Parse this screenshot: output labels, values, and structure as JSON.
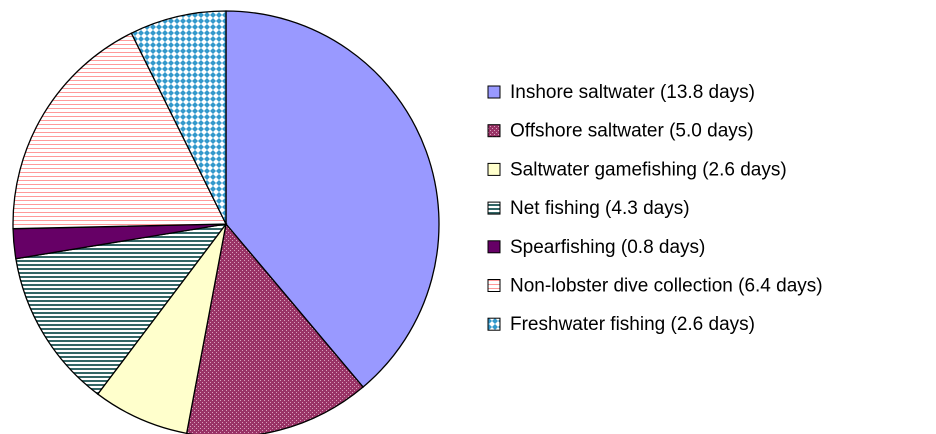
{
  "chart_data": {
    "type": "pie",
    "categories": [
      "Inshore saltwater (13.8 days)",
      "Offshore saltwater (5.0 days)",
      "Saltwater gamefishing (2.6 days)",
      "Net fishing (4.3 days)",
      "Spearfishing (0.8 days)",
      "Non-lobster dive collection (6.4 days)",
      "Freshwater fishing (2.6 days)"
    ],
    "values": [
      13.8,
      5.0,
      2.6,
      4.3,
      0.8,
      6.4,
      2.6
    ],
    "colors": [
      "#9999ff",
      "#993366",
      "#ffffcc",
      "#336666",
      "#660066",
      "#ff9999",
      "#3399cc"
    ],
    "legend": "right"
  }
}
